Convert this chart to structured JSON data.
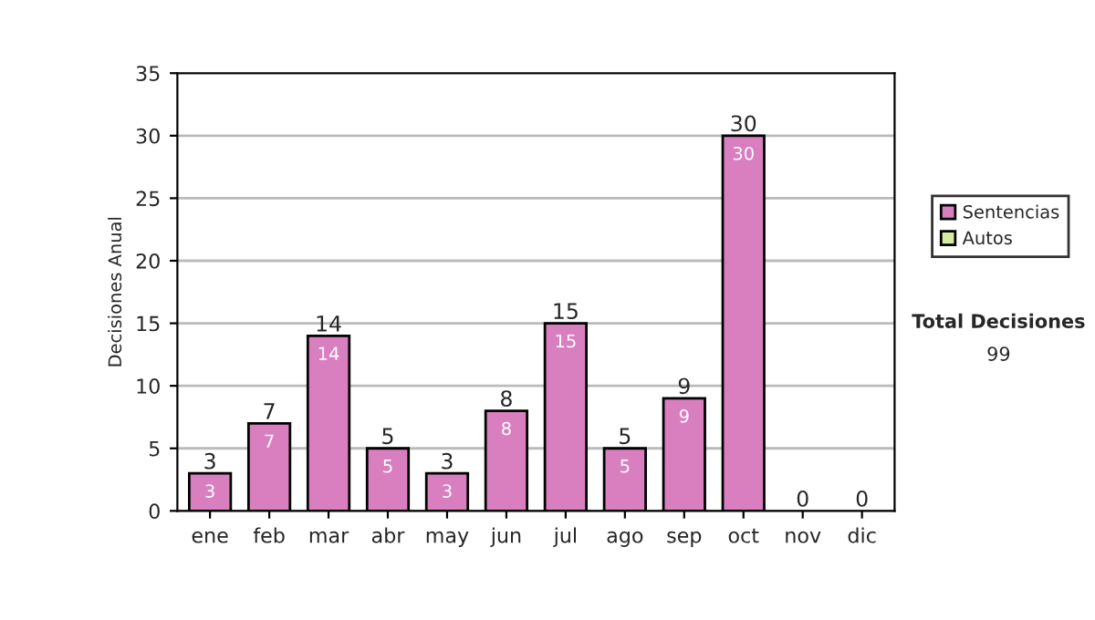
{
  "chart_data": {
    "type": "bar",
    "stacked": true,
    "ylabel": "Decisiones Anual",
    "categories": [
      "ene",
      "feb",
      "mar",
      "abr",
      "may",
      "jun",
      "jul",
      "ago",
      "sep",
      "oct",
      "nov",
      "dic"
    ],
    "series": [
      {
        "name": "Sentencias",
        "color": "#d97fc0",
        "values": [
          3,
          7,
          14,
          5,
          3,
          8,
          15,
          5,
          9,
          30,
          0,
          0
        ],
        "value_labels": [
          "3",
          "7",
          "14",
          "5",
          "3",
          "8",
          "15",
          "5",
          "9",
          "30",
          null,
          null
        ]
      },
      {
        "name": "Autos",
        "color": "#d6eba0",
        "values": [
          0,
          0,
          0,
          0,
          0,
          0,
          0,
          0,
          0,
          0,
          0,
          0
        ]
      }
    ],
    "totals": [
      "3",
      "7",
      "14",
      "5",
      "3",
      "8",
      "15",
      "5",
      "9",
      "30",
      "0",
      "0"
    ],
    "ylim": [
      0,
      35
    ],
    "yticks": [
      0,
      5,
      10,
      15,
      20,
      25,
      30,
      35
    ],
    "grid": "y",
    "legend": "right",
    "annotations": [
      "Total Decisiones",
      "99"
    ]
  }
}
